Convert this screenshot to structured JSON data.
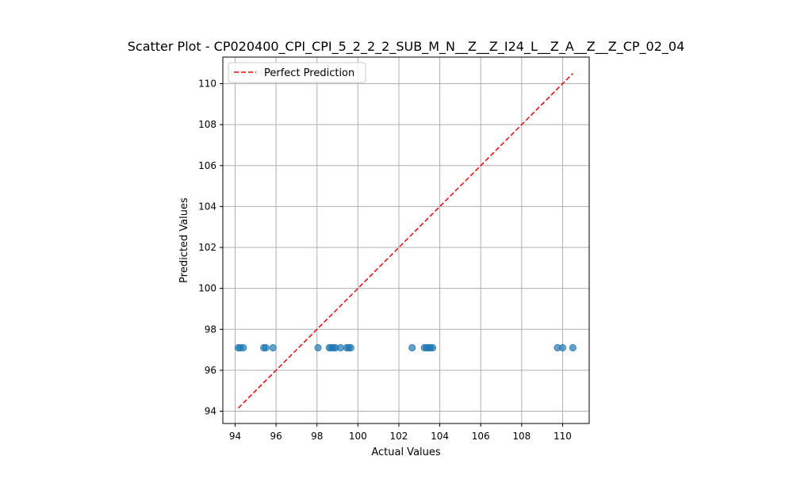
{
  "chart_data": {
    "type": "scatter",
    "title": "Scatter Plot - CP020400_CPI_CPI_5_2_2_2_SUB_M_N__Z__Z_I24_L__Z_A__Z__Z_CP_02_04",
    "xlabel": "Actual Values",
    "ylabel": "Predicted Values",
    "xlim": [
      93.4,
      111.3
    ],
    "ylim": [
      93.4,
      111.3
    ],
    "xticks": [
      94,
      96,
      98,
      100,
      102,
      104,
      106,
      108,
      110
    ],
    "yticks": [
      94,
      96,
      98,
      100,
      102,
      104,
      106,
      108,
      110
    ],
    "grid": true,
    "legend_position": "upper-left",
    "series": [
      {
        "kind": "points",
        "color": "#1f77b4",
        "x": [
          94.15,
          94.25,
          94.4,
          95.4,
          95.5,
          95.85,
          98.05,
          98.6,
          98.7,
          98.8,
          98.9,
          99.15,
          99.45,
          99.55,
          99.65,
          102.65,
          103.25,
          103.35,
          103.45,
          103.55,
          103.65,
          109.75,
          110.0,
          110.5
        ],
        "y": [
          97.1,
          97.1,
          97.1,
          97.1,
          97.1,
          97.1,
          97.1,
          97.1,
          97.1,
          97.1,
          97.1,
          97.1,
          97.1,
          97.1,
          97.1,
          97.1,
          97.1,
          97.1,
          97.1,
          97.1,
          97.1,
          97.1,
          97.1,
          97.1
        ]
      },
      {
        "kind": "line",
        "name": "Perfect Prediction",
        "color": "#ff0000",
        "dash": "dashed",
        "x": [
          94.15,
          110.5
        ],
        "y": [
          94.15,
          110.5
        ]
      }
    ]
  }
}
